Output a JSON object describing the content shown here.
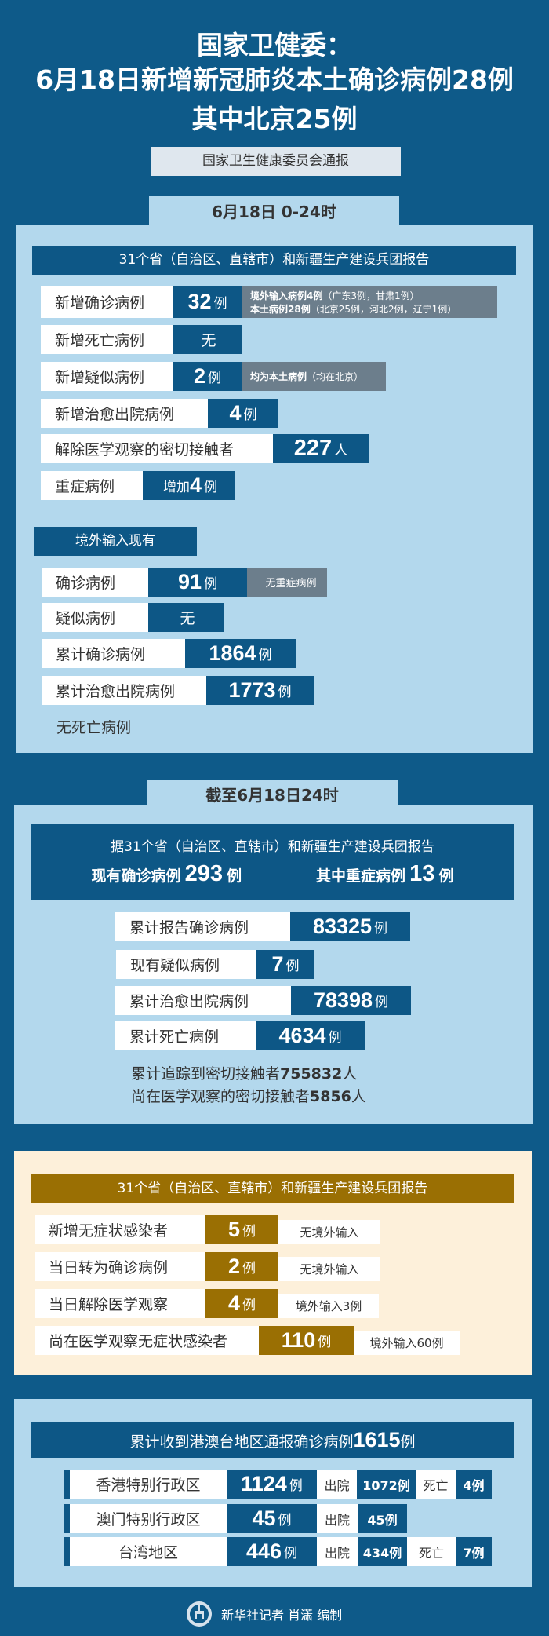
{
  "header": {
    "title_line1": "国家卫健委：",
    "title_line2": "6月18日新增新冠肺炎本土确诊病例28例",
    "title_line3": "其中北京25例",
    "source": "国家卫生健康委员会通报"
  },
  "daily": {
    "tab": "6月18日 0-24时",
    "report_header": "31个省（自治区、直辖市）和新疆生产建设兵团报告",
    "rows": [
      {
        "label": "新增确诊病例",
        "num": "32",
        "unit": "例",
        "note_bold1": "境外输入病例4例",
        "note1": "（广东3例，甘肃1例）",
        "note_bold2": "本土病例28例",
        "note2": "（北京25例，河北2例，辽宁1例）"
      },
      {
        "label": "新增死亡病例",
        "num": "",
        "unit": "无"
      },
      {
        "label": "新增疑似病例",
        "num": "2",
        "unit": "例",
        "note_bold1": "均为本土病例",
        "note1": "（均在北京）"
      },
      {
        "label": "新增治愈出院病例",
        "num": "4",
        "unit": "例"
      },
      {
        "label": "解除医学观察的密切接触者",
        "num": "227",
        "unit": "人"
      },
      {
        "label": "重症病例",
        "prefix": "增加",
        "num": "4",
        "unit": "例"
      }
    ],
    "imported_header": "境外输入现有",
    "imported_rows": [
      {
        "label": "确诊病例",
        "num": "91",
        "unit": "例",
        "note": "无重症病例"
      },
      {
        "label": "疑似病例",
        "num": "",
        "unit": "无"
      },
      {
        "label": "累计确诊病例",
        "num": "1864",
        "unit": "例"
      },
      {
        "label": "累计治愈出院病例",
        "num": "1773",
        "unit": "例"
      }
    ],
    "no_death": "无死亡病例"
  },
  "cumulative": {
    "tab": "截至6月18日24时",
    "report_header": "据31个省（自治区、直辖市）和新疆生产建设兵团报告",
    "current_label": "现有确诊病例",
    "current_num": "293",
    "current_unit": "例",
    "severe_label": "其中重症病例",
    "severe_num": "13",
    "severe_unit": "例",
    "rows": [
      {
        "label": "累计报告确诊病例",
        "num": "83325",
        "unit": "例"
      },
      {
        "label": "现有疑似病例",
        "num": "7",
        "unit": "例"
      },
      {
        "label": "累计治愈出院病例",
        "num": "78398",
        "unit": "例"
      },
      {
        "label": "累计死亡病例",
        "num": "4634",
        "unit": "例"
      }
    ],
    "traced_text": "累计追踪到密切接触者",
    "traced_num": "755832",
    "traced_unit": "人",
    "observing_text": "尚在医学观察的密切接触者",
    "observing_num": "5856",
    "observing_unit": "人"
  },
  "asymptomatic": {
    "header": "31个省（自治区、直辖市）和新疆生产建设兵团报告",
    "rows": [
      {
        "label": "新增无症状感染者",
        "num": "5",
        "unit": "例",
        "note": "无境外输入"
      },
      {
        "label": "当日转为确诊病例",
        "num": "2",
        "unit": "例",
        "note": "无境外输入"
      },
      {
        "label": "当日解除医学观察",
        "num": "4",
        "unit": "例",
        "note": "境外输入3例"
      },
      {
        "label": "尚在医学观察无症状感染者",
        "num": "110",
        "unit": "例",
        "note": "境外输入60例"
      }
    ]
  },
  "hmt": {
    "header_text": "累计收到港澳台地区通报确诊病例",
    "header_num": "1615",
    "header_unit": "例",
    "discharged_label": "出院",
    "death_label": "死亡",
    "rows": [
      {
        "region": "香港特别行政区",
        "num": "1124",
        "unit": "例",
        "discharged": "1072例",
        "deaths": "4例"
      },
      {
        "region": "澳门特别行政区",
        "num": "45",
        "unit": "例",
        "discharged": "45例"
      },
      {
        "region": "台湾地区",
        "num": "446",
        "unit": "例",
        "discharged": "434例",
        "deaths": "7例"
      }
    ]
  },
  "footer": {
    "credit": "新华社记者 肖潇 编制",
    "logo_icon": "xinhua-logo"
  },
  "colors": {
    "background": "#0e5a89",
    "panel": "#b3d8ed",
    "value_box": "#0d5786",
    "note_gray": "#6c7e8c",
    "gold": "#9a6f03",
    "cream": "#fdf0da"
  }
}
